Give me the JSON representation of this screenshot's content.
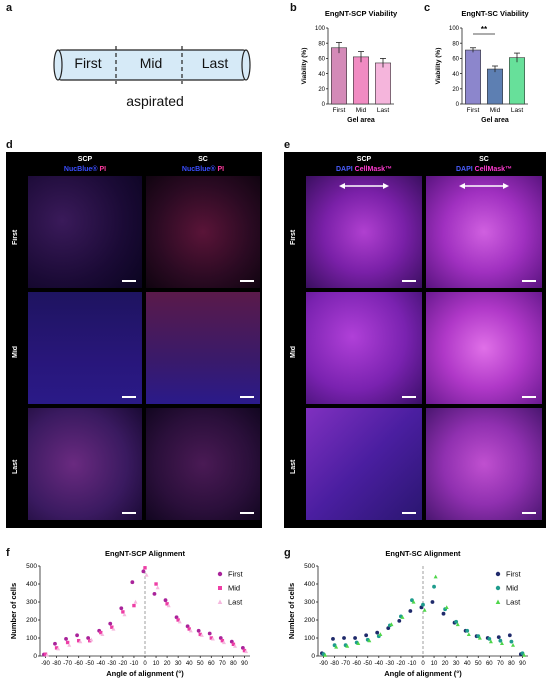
{
  "panels": {
    "a": "a",
    "b": "b",
    "c": "c",
    "d": "d",
    "e": "e",
    "f": "f",
    "g": "g"
  },
  "panel_a": {
    "segments": [
      "First",
      "Mid",
      "Last"
    ],
    "caption": "aspirated"
  },
  "panel_d": {
    "columns": [
      "SCP",
      "SC"
    ],
    "stain_1": "NucBlue®",
    "stain_2": "PI",
    "rows": [
      "First",
      "Mid",
      "Last"
    ]
  },
  "panel_e": {
    "columns": [
      "SCP",
      "SC"
    ],
    "stain_1": "DAPI",
    "stain_2": "CellMask™",
    "rows": [
      "First",
      "Mid",
      "Last"
    ]
  },
  "chart_data": [
    {
      "id": "b",
      "type": "bar",
      "title": "EngNT-SCP Viability",
      "xlabel": "Gel area",
      "ylabel": "Viability (%)",
      "categories": [
        "First",
        "Mid",
        "Last"
      ],
      "values": [
        74,
        62,
        54
      ],
      "errors": [
        7,
        7,
        6
      ],
      "ylim": [
        0,
        100
      ],
      "yticks": [
        0,
        20,
        40,
        60,
        80,
        100
      ],
      "colors": [
        "#d48ab8",
        "#f18bc2",
        "#f5b5dc"
      ]
    },
    {
      "id": "c",
      "type": "bar",
      "title": "EngNT-SC Viability",
      "xlabel": "Gel area",
      "ylabel": "Viability (%)",
      "categories": [
        "First",
        "Mid",
        "Last"
      ],
      "values": [
        71,
        46,
        61
      ],
      "errors": [
        3,
        4,
        6
      ],
      "ylim": [
        0,
        100
      ],
      "yticks": [
        0,
        20,
        40,
        60,
        80,
        100
      ],
      "colors": [
        "#8c86cc",
        "#5d7fb2",
        "#67e09a"
      ],
      "significance": "**"
    },
    {
      "id": "f",
      "type": "scatter",
      "title": "EngNT-SCP Alignment",
      "xlabel": "Angle of alignment (°)",
      "ylabel": "Number of cells",
      "xlim": [
        -95,
        95
      ],
      "ylim": [
        0,
        500
      ],
      "xticks": [
        -90,
        -80,
        -70,
        -60,
        -50,
        -40,
        -30,
        -20,
        -10,
        0,
        10,
        20,
        30,
        40,
        50,
        60,
        70,
        80,
        90
      ],
      "yticks": [
        0,
        100,
        200,
        300,
        400,
        500
      ],
      "series": [
        {
          "name": "First",
          "color": "#a9239a",
          "marker": "circle",
          "x": [
            -90,
            -80,
            -70,
            -60,
            -50,
            -40,
            -30,
            -20,
            -10,
            0,
            10,
            20,
            30,
            40,
            50,
            60,
            70,
            80,
            90
          ],
          "y": [
            8,
            68,
            95,
            115,
            100,
            140,
            180,
            265,
            410,
            470,
            345,
            310,
            215,
            165,
            140,
            125,
            100,
            80,
            45
          ]
        },
        {
          "name": "Mid",
          "color": "#ee3ea5",
          "marker": "square",
          "x": [
            -90,
            -80,
            -70,
            -60,
            -50,
            -40,
            -30,
            -20,
            -10,
            0,
            10,
            20,
            30,
            40,
            50,
            60,
            70,
            80,
            90
          ],
          "y": [
            10,
            45,
            75,
            85,
            85,
            130,
            160,
            245,
            280,
            490,
            400,
            290,
            200,
            150,
            120,
            100,
            85,
            65,
            30
          ]
        },
        {
          "name": "Last",
          "color": "#f5b8de",
          "marker": "triangle",
          "x": [
            -90,
            -80,
            -70,
            -60,
            -50,
            -40,
            -30,
            -20,
            -10,
            0,
            10,
            20,
            30,
            40,
            50,
            60,
            70,
            80,
            90
          ],
          "y": [
            5,
            40,
            60,
            80,
            90,
            120,
            150,
            230,
            300,
            450,
            380,
            280,
            190,
            140,
            115,
            95,
            75,
            55,
            25
          ]
        }
      ]
    },
    {
      "id": "g",
      "type": "scatter",
      "title": "EngNT-SC Alignment",
      "xlabel": "Angle of alignment (°)",
      "ylabel": "Number of cells",
      "xlim": [
        -95,
        95
      ],
      "ylim": [
        0,
        500
      ],
      "xticks": [
        -90,
        -80,
        -70,
        -60,
        -50,
        -40,
        -30,
        -20,
        -10,
        0,
        10,
        20,
        30,
        40,
        50,
        60,
        70,
        80,
        90
      ],
      "yticks": [
        0,
        100,
        200,
        300,
        400,
        500
      ],
      "series": [
        {
          "name": "First",
          "color": "#1f2a6b",
          "marker": "circle",
          "x": [
            -90,
            -80,
            -70,
            -60,
            -50,
            -40,
            -30,
            -20,
            -10,
            0,
            10,
            20,
            30,
            40,
            50,
            60,
            70,
            80,
            90
          ],
          "y": [
            15,
            95,
            100,
            100,
            115,
            130,
            155,
            195,
            250,
            270,
            300,
            235,
            185,
            140,
            110,
            100,
            105,
            115,
            10
          ]
        },
        {
          "name": "Mid",
          "color": "#1f9c8d",
          "marker": "circle",
          "x": [
            -90,
            -80,
            -70,
            -60,
            -50,
            -40,
            -30,
            -20,
            -10,
            0,
            10,
            20,
            30,
            40,
            50,
            60,
            70,
            80,
            90
          ],
          "y": [
            10,
            60,
            60,
            75,
            90,
            110,
            170,
            220,
            310,
            285,
            385,
            260,
            190,
            140,
            110,
            95,
            85,
            80,
            15
          ]
        },
        {
          "name": "Last",
          "color": "#4fd64a",
          "marker": "triangle",
          "x": [
            -90,
            -80,
            -70,
            -60,
            -50,
            -40,
            -30,
            -20,
            -10,
            0,
            10,
            20,
            30,
            40,
            50,
            60,
            70,
            80,
            90
          ],
          "y": [
            5,
            50,
            55,
            70,
            85,
            120,
            175,
            215,
            300,
            255,
            440,
            270,
            175,
            120,
            100,
            80,
            70,
            60,
            5
          ]
        }
      ]
    }
  ]
}
